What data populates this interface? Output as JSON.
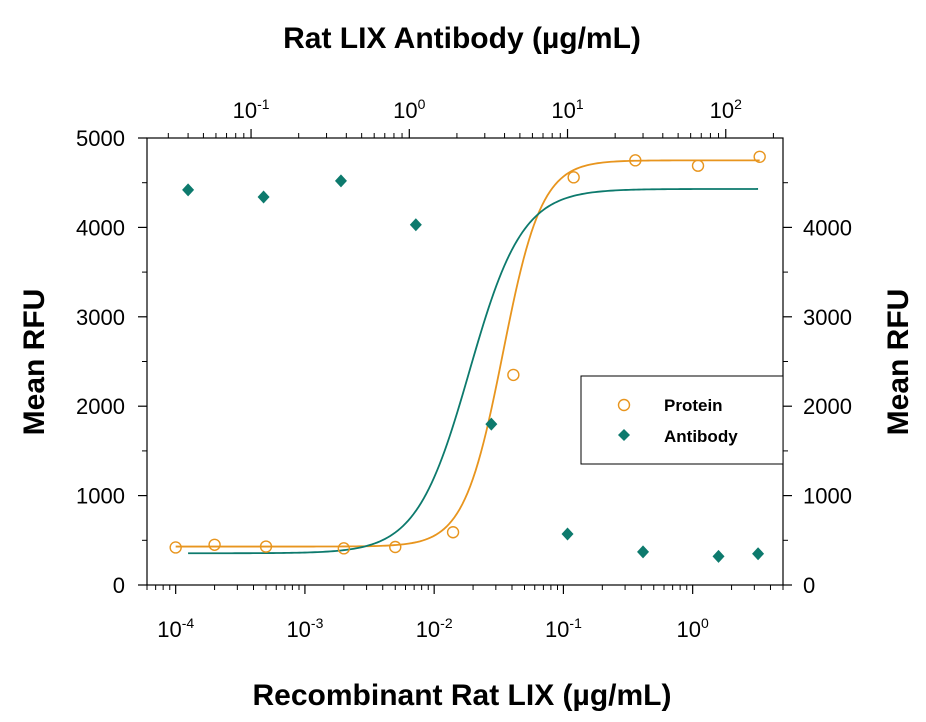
{
  "chart_data": {
    "type": "scatter",
    "top_axis_title": "Rat LIX Antibody (µg/mL)",
    "bottom_axis_title": "Recombinant Rat LIX (µg/mL)",
    "left_axis_title": "Mean RFU",
    "right_axis_title": "Mean RFU",
    "x_bottom_scale": "log",
    "x_bottom_range": [
      6e-05,
      5
    ],
    "x_bottom_ticks": [
      {
        "base": "10",
        "exp": "-4",
        "value": 0.0001
      },
      {
        "base": "10",
        "exp": "-3",
        "value": 0.001
      },
      {
        "base": "10",
        "exp": "-2",
        "value": 0.01
      },
      {
        "base": "10",
        "exp": "-1",
        "value": 0.1
      },
      {
        "base": "10",
        "exp": "0",
        "value": 1
      }
    ],
    "x_top_scale": "log",
    "x_top_range": [
      0.022,
      230
    ],
    "x_top_ticks": [
      {
        "base": "10",
        "exp": "-1",
        "value": 0.1
      },
      {
        "base": "10",
        "exp": "0",
        "value": 1
      },
      {
        "base": "10",
        "exp": "1",
        "value": 10
      },
      {
        "base": "10",
        "exp": "2",
        "value": 100
      }
    ],
    "y_left_range": [
      0,
      5000
    ],
    "y_left_ticks": [
      0,
      1000,
      2000,
      3000,
      4000,
      5000
    ],
    "y_right_range": [
      0,
      5000
    ],
    "y_right_ticks": [
      0,
      1000,
      2000,
      3000,
      4000
    ],
    "grid": false,
    "legend_position": "right-middle",
    "series": [
      {
        "name": "Protein",
        "x_axis": "bottom",
        "marker": "open-circle",
        "color": "#e8951e",
        "x": [
          0.0001,
          0.0002,
          0.0005,
          0.002,
          0.005,
          0.014,
          0.041,
          0.12,
          0.36,
          1.1,
          3.3
        ],
        "y": [
          420,
          450,
          430,
          410,
          425,
          590,
          2350,
          4560,
          4750,
          4690,
          4790
        ],
        "fit": {
          "bottom": 430,
          "top": 4750,
          "ec50": 0.034,
          "hill": 2.9
        }
      },
      {
        "name": "Antibody",
        "x_axis": "top",
        "marker": "filled-diamond",
        "color": "#0d7a6d",
        "x": [
          0.04,
          0.12,
          0.37,
          1.1,
          3.3,
          10,
          30,
          90,
          160
        ],
        "y": [
          4420,
          4340,
          4520,
          4030,
          1800,
          570,
          370,
          320,
          350
        ],
        "fit": {
          "bottom": 355,
          "top": 4430,
          "ec50": 2.4,
          "hill": 2.6
        }
      }
    ]
  }
}
